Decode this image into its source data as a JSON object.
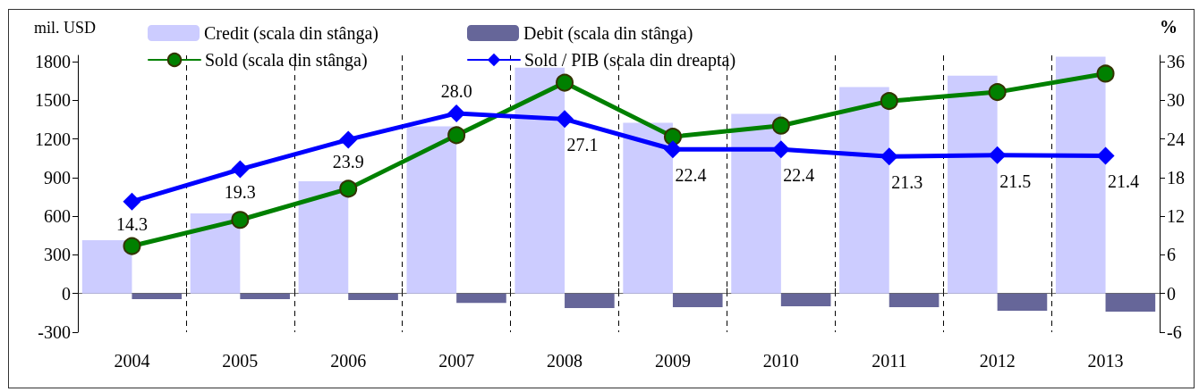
{
  "chart_data": {
    "type": "bar",
    "ylabel": "mil. USD",
    "y2label": "%",
    "categories": [
      "2004",
      "2005",
      "2006",
      "2007",
      "2008",
      "2009",
      "2010",
      "2011",
      "2012",
      "2013"
    ],
    "series": [
      {
        "name": "Credit (scala din stânga)",
        "color": "#ccccff",
        "values": [
          415,
          623,
          872,
          1299,
          1754,
          1327,
          1396,
          1604,
          1692,
          1840
        ]
      },
      {
        "name": "Debit (scala din stânga)",
        "color": "#666699",
        "values": [
          -44,
          -44,
          -51,
          -72,
          -113,
          -106,
          -99,
          -106,
          -134,
          -141
        ]
      },
      {
        "name": "Sold (scala din stânga)",
        "type": "line",
        "color": "#008000",
        "marker": "circle",
        "values": [
          369,
          572,
          814,
          1230,
          1638,
          1218,
          1304,
          1495,
          1565,
          1708
        ]
      },
      {
        "name": "Sold / PIB (scala din dreapta)",
        "type": "line",
        "axis": "y2",
        "color": "#0000ff",
        "marker": "diamond",
        "values": [
          14.3,
          19.3,
          23.9,
          28.0,
          27.1,
          22.4,
          22.4,
          21.3,
          21.5,
          21.4
        ],
        "value_labels": [
          "14.3",
          "19.3",
          "23.9",
          "28.0",
          "27.1",
          "22.4",
          "22.4",
          "21.3",
          "21.5",
          "21.4"
        ]
      }
    ],
    "ylim": [
      -300,
      1850
    ],
    "yticks": [
      -300,
      0,
      300,
      600,
      900,
      1200,
      1500,
      1800
    ],
    "y2lim": [
      -6,
      37
    ],
    "y2ticks": [
      -6,
      0,
      6,
      12,
      18,
      24,
      30,
      36
    ],
    "grid": "x",
    "legend": "top"
  }
}
